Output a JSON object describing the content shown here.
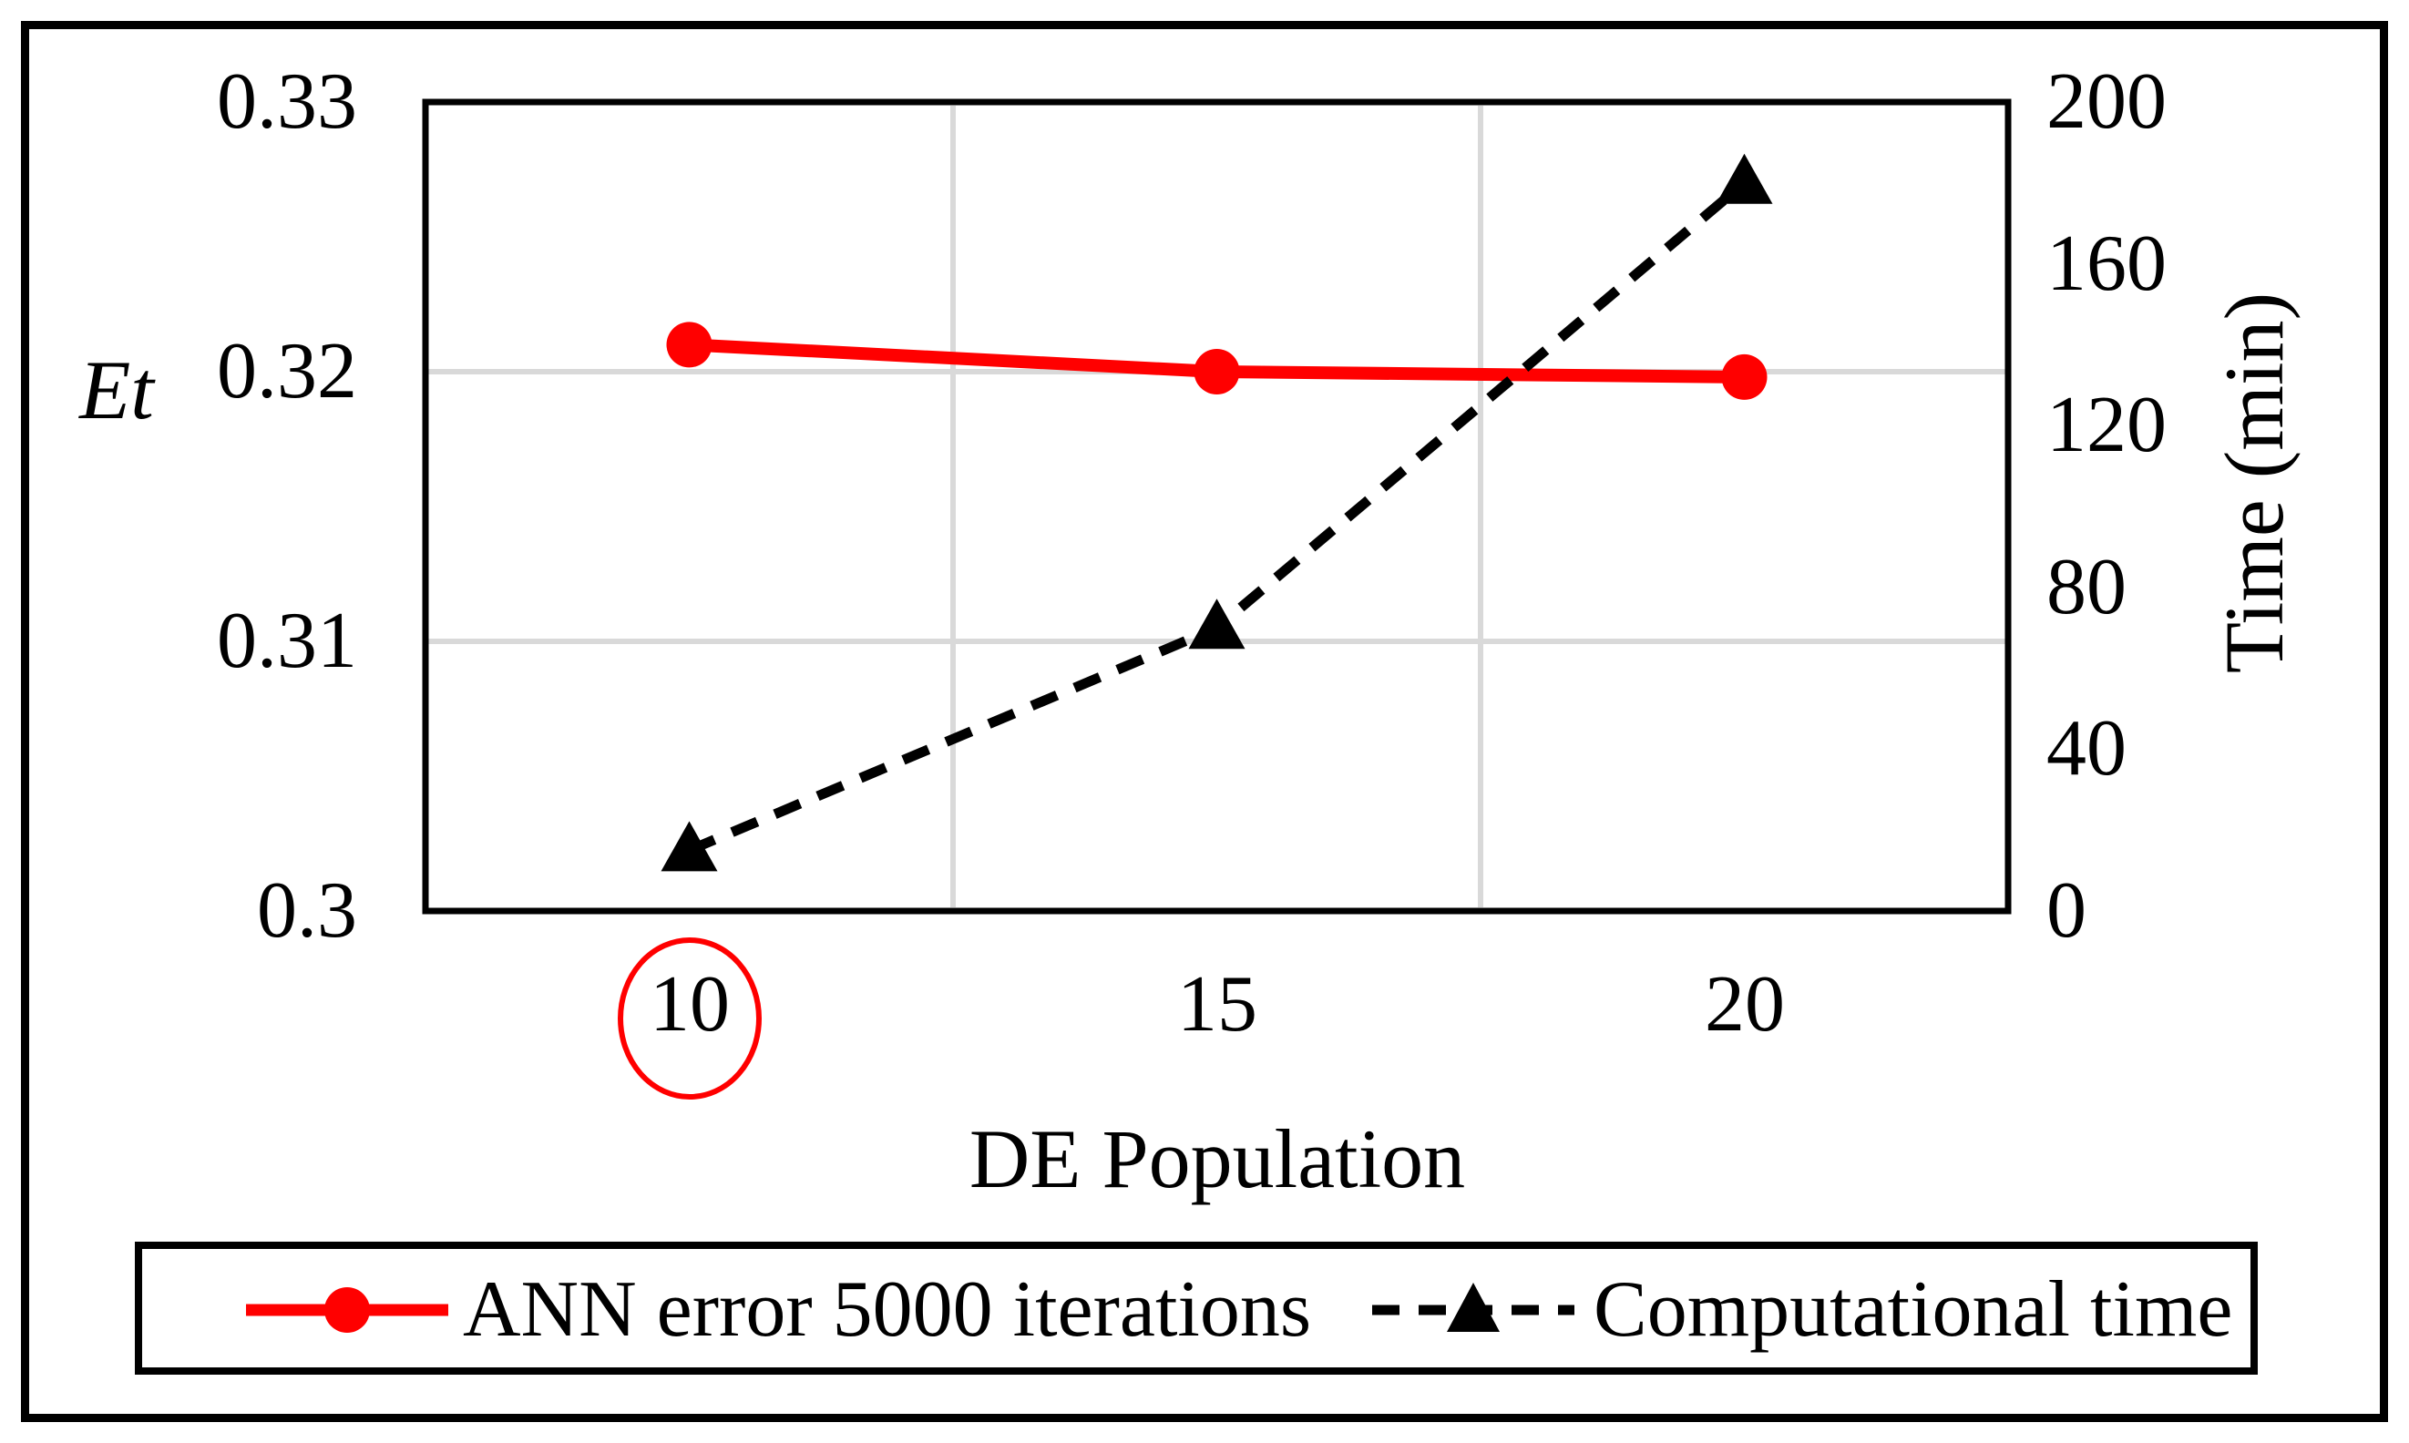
{
  "chart_data": {
    "type": "line",
    "categories": [
      "10",
      "15",
      "20"
    ],
    "series": [
      {
        "name": "ANN error 5000 iterations",
        "axis": "left",
        "color": "#FF0000",
        "line_style": "solid",
        "marker": "circle",
        "values": [
          0.321,
          0.32,
          0.3198
        ]
      },
      {
        "name": "Computational time",
        "axis": "right",
        "color": "#000000",
        "line_style": "dashed",
        "marker": "triangle-up",
        "values": [
          15,
          70,
          180
        ]
      }
    ],
    "left_axis": {
      "title": "Et",
      "range": [
        0.3,
        0.33
      ],
      "tick_labels": [
        "0.33",
        "0.32",
        "0.31",
        "0.3"
      ],
      "gridlines": true
    },
    "right_axis": {
      "title": "Time (min)",
      "range": [
        0,
        200
      ],
      "tick_labels": [
        "200",
        "160",
        "120",
        "80",
        "40",
        "0"
      ]
    },
    "x_axis": {
      "title": "DE Population",
      "tick_labels": [
        "10",
        "15",
        "20"
      ],
      "highlighted_tick": "10",
      "highlight_shape": "red-ellipse",
      "highlight_color": "#FF0000"
    },
    "legend": {
      "position": "bottom",
      "items": [
        "ANN error 5000 iterations",
        "Computational time"
      ]
    },
    "colors": {
      "gridline": "#D9D9D9",
      "plot_border": "#000000",
      "background": "#FFFFFF"
    }
  }
}
